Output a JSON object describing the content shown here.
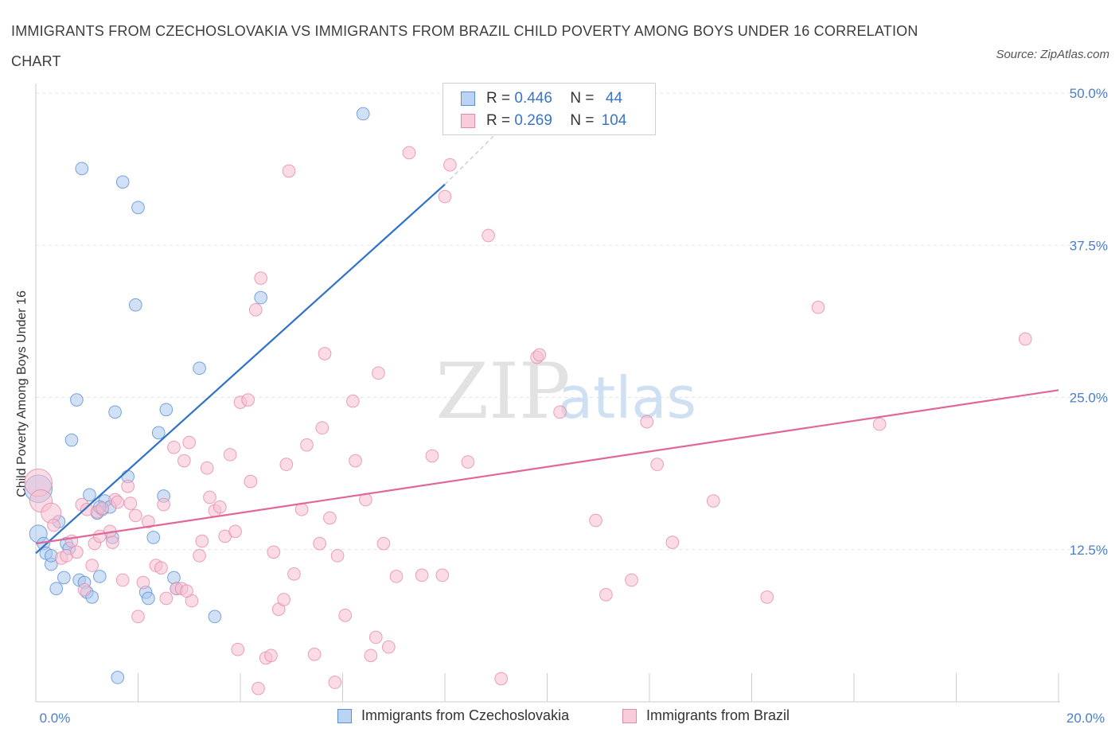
{
  "title": "IMMIGRANTS FROM CZECHOSLOVAKIA VS IMMIGRANTS FROM BRAZIL CHILD POVERTY AMONG BOYS UNDER 16 CORRELATION CHART",
  "source": "Source: ZipAtlas.com",
  "watermark": {
    "zip": "ZIP",
    "atlas": "atlas"
  },
  "legend_top": {
    "rows": [
      {
        "r_label": "R =",
        "r_value": "0.446",
        "n_label": "N =",
        "n_value": "44"
      },
      {
        "r_label": "R =",
        "r_value": "0.269",
        "n_label": "N =",
        "n_value": "104"
      }
    ]
  },
  "colors": {
    "blue_fill": "#a9c8ee",
    "blue_stroke": "#5b8fd4",
    "blue_line": "#2f72c8",
    "pink_fill": "#f7c0d2",
    "pink_stroke": "#e38aaa",
    "pink_line": "#e0679a",
    "tick": "#4a7fc9"
  },
  "chart_data": {
    "type": "scatter",
    "xlabel": "",
    "ylabel": "Child Poverty Among Boys Under 16",
    "xlim": [
      0,
      20
    ],
    "ylim": [
      0,
      50
    ],
    "x_tick_labels": [
      {
        "v": 0,
        "label": "0.0%"
      },
      {
        "v": 20,
        "label": "20.0%"
      }
    ],
    "x_minor_ticks": [
      0,
      2,
      4,
      6,
      8,
      10,
      12,
      14,
      16,
      18,
      20
    ],
    "y_ticks": [
      {
        "v": 12.5,
        "label": "12.5%"
      },
      {
        "v": 25,
        "label": "25.0%"
      },
      {
        "v": 37.5,
        "label": "37.5%"
      },
      {
        "v": 50,
        "label": "50.0%"
      }
    ],
    "grid": true,
    "legend_position": "bottom",
    "series": [
      {
        "name": "Immigrants from Czechoslovakia",
        "color": "blue",
        "trend": {
          "x": [
            0,
            8.0
          ],
          "y": [
            12.2,
            42.5
          ],
          "dash_to": [
            9.2,
            47.5
          ]
        },
        "points": [
          [
            0.05,
            17.5,
            22
          ],
          [
            0.05,
            13.8,
            14
          ],
          [
            0.15,
            13.0,
            10
          ],
          [
            0.2,
            12.2,
            10
          ],
          [
            0.3,
            11.3,
            10
          ],
          [
            0.3,
            12.0,
            10
          ],
          [
            0.4,
            9.3,
            10
          ],
          [
            0.45,
            14.8,
            10
          ],
          [
            0.55,
            10.2,
            10
          ],
          [
            0.6,
            13.0,
            10
          ],
          [
            0.65,
            12.6,
            10
          ],
          [
            0.7,
            21.5,
            10
          ],
          [
            0.8,
            24.8,
            10
          ],
          [
            0.85,
            10.0,
            10
          ],
          [
            0.9,
            43.8,
            10
          ],
          [
            0.95,
            9.8,
            10
          ],
          [
            1.0,
            9.0,
            10
          ],
          [
            1.05,
            17.0,
            10
          ],
          [
            1.1,
            8.6,
            10
          ],
          [
            1.2,
            15.5,
            10
          ],
          [
            1.25,
            10.3,
            10
          ],
          [
            1.3,
            15.8,
            10
          ],
          [
            1.35,
            16.5,
            10
          ],
          [
            1.45,
            16.0,
            10
          ],
          [
            1.5,
            13.5,
            10
          ],
          [
            1.55,
            23.8,
            10
          ],
          [
            1.6,
            2.0,
            10
          ],
          [
            1.7,
            42.7,
            10
          ],
          [
            1.8,
            18.5,
            10
          ],
          [
            1.95,
            32.6,
            10
          ],
          [
            2.0,
            40.6,
            10
          ],
          [
            2.15,
            9.0,
            10
          ],
          [
            2.2,
            8.5,
            10
          ],
          [
            2.4,
            22.1,
            10
          ],
          [
            2.5,
            16.9,
            10
          ],
          [
            2.55,
            24.0,
            10
          ],
          [
            2.7,
            10.2,
            10
          ],
          [
            2.75,
            9.3,
            10
          ],
          [
            3.2,
            27.4,
            10
          ],
          [
            3.5,
            7.0,
            10
          ],
          [
            4.4,
            33.2,
            10
          ],
          [
            6.4,
            48.3,
            10
          ],
          [
            1.25,
            16.0,
            10
          ],
          [
            2.3,
            13.5,
            10
          ]
        ]
      },
      {
        "name": "Immigrants from Brazil",
        "color": "pink",
        "trend": {
          "x": [
            0,
            20
          ],
          "y": [
            13.0,
            25.6
          ]
        },
        "points": [
          [
            0.05,
            18.0,
            22
          ],
          [
            0.1,
            16.5,
            18
          ],
          [
            0.3,
            15.5,
            16
          ],
          [
            0.35,
            14.5,
            10
          ],
          [
            0.5,
            11.8,
            10
          ],
          [
            0.6,
            12.0,
            10
          ],
          [
            0.7,
            13.2,
            10
          ],
          [
            0.8,
            12.3,
            10
          ],
          [
            0.9,
            16.2,
            10
          ],
          [
            0.95,
            9.2,
            10
          ],
          [
            1.0,
            15.8,
            10
          ],
          [
            1.1,
            11.2,
            10
          ],
          [
            1.15,
            13.0,
            10
          ],
          [
            1.2,
            15.6,
            10
          ],
          [
            1.3,
            15.9,
            10
          ],
          [
            1.45,
            14.0,
            10
          ],
          [
            1.5,
            13.1,
            10
          ],
          [
            1.55,
            16.6,
            10
          ],
          [
            1.6,
            16.4,
            10
          ],
          [
            1.7,
            10.0,
            10
          ],
          [
            1.8,
            17.7,
            10
          ],
          [
            1.85,
            16.3,
            10
          ],
          [
            1.95,
            15.3,
            10
          ],
          [
            2.0,
            7.0,
            10
          ],
          [
            2.1,
            9.8,
            10
          ],
          [
            2.2,
            14.8,
            10
          ],
          [
            2.35,
            11.2,
            10
          ],
          [
            2.45,
            11.0,
            10
          ],
          [
            2.5,
            16.2,
            10
          ],
          [
            2.55,
            8.5,
            10
          ],
          [
            2.7,
            20.9,
            10
          ],
          [
            2.75,
            9.3,
            10
          ],
          [
            2.85,
            9.3,
            10
          ],
          [
            2.9,
            19.8,
            10
          ],
          [
            3.0,
            21.3,
            10
          ],
          [
            3.05,
            8.3,
            10
          ],
          [
            3.2,
            12.0,
            10
          ],
          [
            3.25,
            13.2,
            10
          ],
          [
            3.35,
            19.2,
            10
          ],
          [
            3.5,
            15.7,
            10
          ],
          [
            3.6,
            16.0,
            10
          ],
          [
            3.7,
            13.6,
            10
          ],
          [
            3.8,
            20.3,
            10
          ],
          [
            3.9,
            14.0,
            10
          ],
          [
            3.95,
            4.3,
            10
          ],
          [
            4.0,
            24.6,
            10
          ],
          [
            4.15,
            24.8,
            10
          ],
          [
            4.2,
            18.1,
            10
          ],
          [
            4.3,
            32.2,
            10
          ],
          [
            4.35,
            1.1,
            10
          ],
          [
            4.4,
            34.8,
            10
          ],
          [
            4.5,
            3.6,
            10
          ],
          [
            4.6,
            3.8,
            10
          ],
          [
            4.65,
            12.3,
            10
          ],
          [
            4.75,
            7.6,
            10
          ],
          [
            4.85,
            8.4,
            10
          ],
          [
            4.9,
            19.5,
            10
          ],
          [
            4.95,
            43.6,
            10
          ],
          [
            5.05,
            10.5,
            10
          ],
          [
            5.2,
            15.8,
            10
          ],
          [
            5.3,
            21.1,
            10
          ],
          [
            5.45,
            3.9,
            10
          ],
          [
            5.55,
            13.0,
            10
          ],
          [
            5.6,
            22.5,
            10
          ],
          [
            5.65,
            28.6,
            10
          ],
          [
            5.75,
            15.1,
            10
          ],
          [
            5.85,
            1.6,
            10
          ],
          [
            5.9,
            12.0,
            10
          ],
          [
            6.05,
            7.1,
            10
          ],
          [
            6.2,
            24.7,
            10
          ],
          [
            6.25,
            19.8,
            10
          ],
          [
            6.45,
            16.6,
            10
          ],
          [
            6.55,
            3.8,
            10
          ],
          [
            6.65,
            5.3,
            10
          ],
          [
            6.7,
            27.0,
            10
          ],
          [
            6.8,
            13.0,
            10
          ],
          [
            6.9,
            4.5,
            10
          ],
          [
            7.05,
            10.3,
            10
          ],
          [
            7.3,
            45.1,
            10
          ],
          [
            7.55,
            10.4,
            10
          ],
          [
            7.75,
            20.2,
            10
          ],
          [
            7.95,
            10.4,
            10
          ],
          [
            8.1,
            44.1,
            10
          ],
          [
            8.0,
            41.5,
            10
          ],
          [
            8.45,
            19.7,
            10
          ],
          [
            8.85,
            38.3,
            10
          ],
          [
            9.1,
            1.9,
            10
          ],
          [
            9.8,
            28.3,
            10
          ],
          [
            9.85,
            28.5,
            10
          ],
          [
            10.25,
            23.8,
            10
          ],
          [
            10.95,
            14.9,
            10
          ],
          [
            11.15,
            8.8,
            10
          ],
          [
            11.65,
            10.0,
            10
          ],
          [
            11.95,
            23.0,
            10
          ],
          [
            12.15,
            19.5,
            10
          ],
          [
            12.45,
            13.1,
            10
          ],
          [
            13.25,
            16.5,
            10
          ],
          [
            14.3,
            8.6,
            10
          ],
          [
            15.3,
            32.4,
            10
          ],
          [
            16.5,
            22.8,
            10
          ],
          [
            19.35,
            29.8,
            10
          ],
          [
            2.95,
            9.1,
            10
          ],
          [
            1.25,
            13.6,
            10
          ],
          [
            3.4,
            16.8,
            10
          ]
        ]
      }
    ]
  }
}
